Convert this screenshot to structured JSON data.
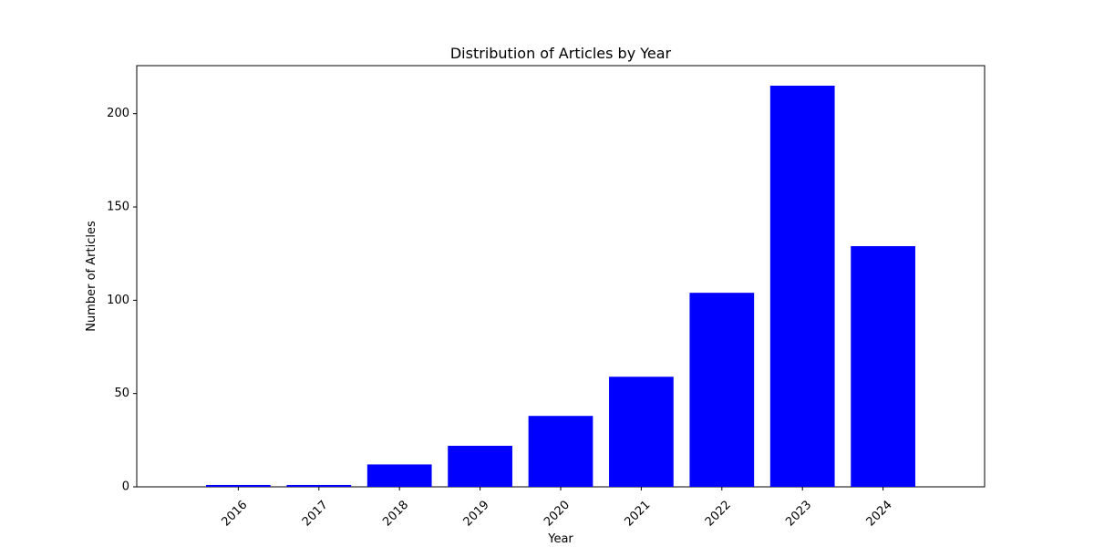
{
  "chart_data": {
    "type": "bar",
    "title": "Distribution of Articles by Year",
    "xlabel": "Year",
    "ylabel": "Number of Articles",
    "categories": [
      "2016",
      "2017",
      "2018",
      "2019",
      "2020",
      "2021",
      "2022",
      "2023",
      "2024"
    ],
    "values": [
      1,
      1,
      12,
      22,
      38,
      59,
      104,
      215,
      129
    ],
    "ylim": [
      0,
      225.75
    ],
    "yticks": [
      0,
      50,
      100,
      150,
      200
    ],
    "ytick_labels": [
      "0",
      "50",
      "100",
      "150",
      "200"
    ],
    "xtick_rotation": "45deg",
    "bar_color": "#0000ff",
    "grid": false,
    "legend": "none"
  }
}
